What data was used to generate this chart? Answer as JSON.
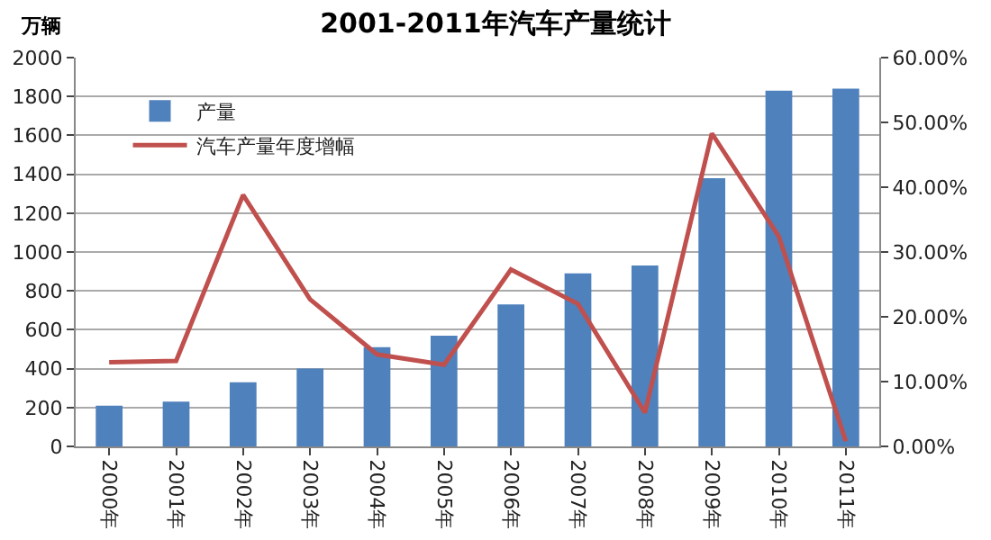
{
  "chart_data": {
    "type": "bar",
    "title": "2001-2011年汽车产量统计",
    "ylabel": "万辆",
    "categories": [
      "2000年",
      "2001年",
      "2002年",
      "2003年",
      "2004年",
      "2005年",
      "2006年",
      "2007年",
      "2008年",
      "2009年",
      "2010年",
      "2011年"
    ],
    "series": [
      {
        "name": "产量",
        "color": "#4f81bd",
        "values": [
          210,
          230,
          330,
          400,
          510,
          570,
          730,
          890,
          930,
          1380,
          1830,
          1840
        ]
      },
      {
        "name": "汽车产量年度增幅",
        "type": "line",
        "axis": "y2",
        "color": "#c0504d",
        "values": [
          13,
          13.2,
          38.8,
          22.7,
          14.2,
          12.6,
          27.3,
          22,
          5.2,
          48.3,
          32.4,
          0.8
        ]
      }
    ],
    "ylim": [
      0,
      2000
    ],
    "yticks": [
      0,
      200,
      400,
      600,
      800,
      1000,
      1200,
      1400,
      1600,
      1800,
      2000
    ],
    "y2lim": [
      0,
      60
    ],
    "y2ticks": [
      {
        "value": 0,
        "label": "0.00%"
      },
      {
        "value": 10,
        "label": "10.00%"
      },
      {
        "value": 20,
        "label": "20.00%"
      },
      {
        "value": 30,
        "label": "30.00%"
      },
      {
        "value": 40,
        "label": "40.00%"
      },
      {
        "value": 50,
        "label": "50.00%"
      },
      {
        "value": 60,
        "label": "60.00%"
      }
    ],
    "grid": "y",
    "legend": "top left",
    "marker": "none",
    "line_style": "solid"
  }
}
